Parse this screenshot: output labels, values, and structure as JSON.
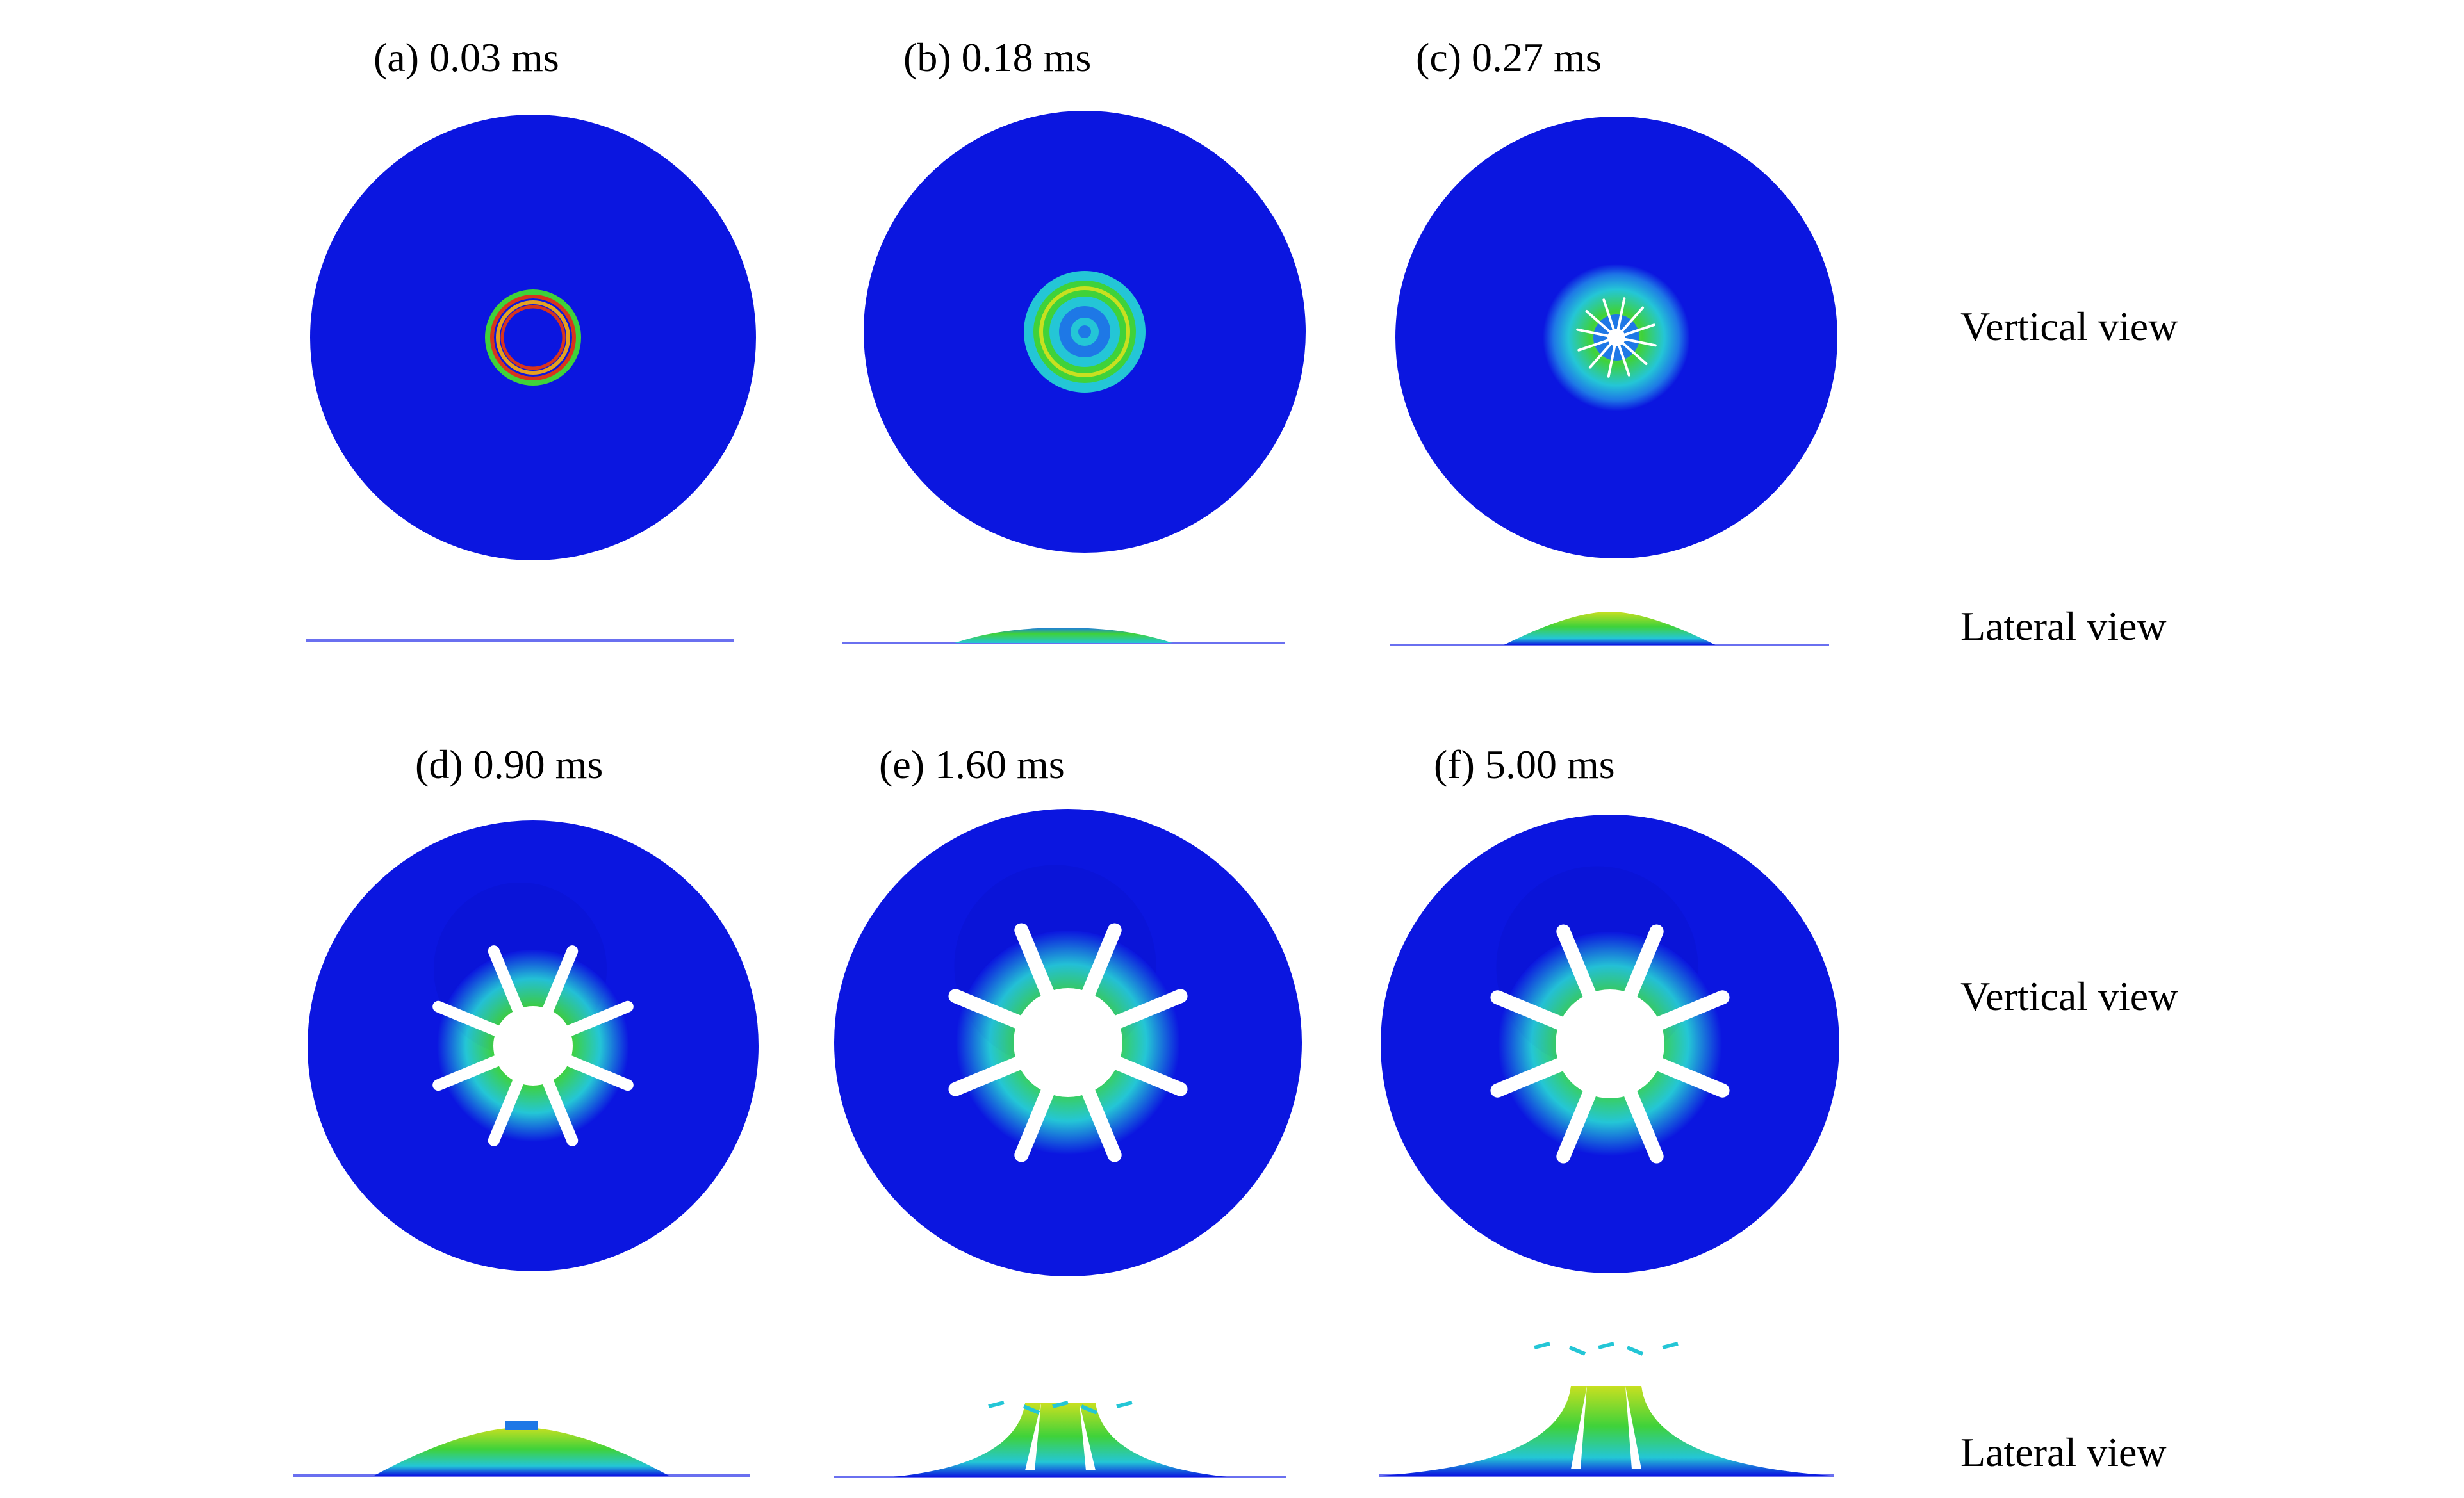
{
  "panels": [
    {
      "label": "(a) 0.03 ms",
      "stage": 0
    },
    {
      "label": "(b) 0.18 ms",
      "stage": 1
    },
    {
      "label": "(c) 0.27 ms",
      "stage": 2
    },
    {
      "label": "(d) 0.90 ms",
      "stage": 3
    },
    {
      "label": "(e) 1.60 ms",
      "stage": 4
    },
    {
      "label": "(f) 5.00 ms",
      "stage": 5
    }
  ],
  "row_labels": {
    "top_vertical": "Vertical view",
    "top_lateral": "Lateral view",
    "bottom_vertical": "Vertical view",
    "bottom_lateral": "Lateral view"
  },
  "colors": {
    "plate": "#0b16e0",
    "plate_dark": "#0a12c8",
    "line": "#6a70f0",
    "ring_red": "#d8341c",
    "ring_orange": "#e6a020",
    "ring_green": "#3fd23a",
    "ring_cyan": "#24c6d6",
    "ring_mid": "#1e78e6",
    "ring_yellow": "#c8e020",
    "hole": "#ffffff"
  }
}
